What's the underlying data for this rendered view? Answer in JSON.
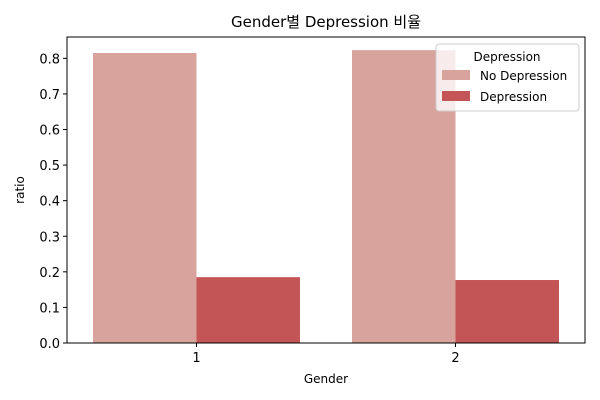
{
  "chart_data": {
    "type": "bar",
    "title": "Gender별 Depression 비율",
    "xlabel": "Gender",
    "ylabel": "ratio",
    "categories": [
      "1",
      "2"
    ],
    "series": [
      {
        "name": "No Depression",
        "values": [
          0.815,
          0.823
        ],
        "color": "#d8a29d"
      },
      {
        "name": "Depression",
        "values": [
          0.185,
          0.177
        ],
        "color": "#c35556"
      }
    ],
    "ylim": [
      0,
      0.86
    ],
    "yticks": [
      0.0,
      0.1,
      0.2,
      0.3,
      0.4,
      0.5,
      0.6,
      0.7,
      0.8
    ],
    "ytick_labels": [
      "0.0",
      "0.1",
      "0.2",
      "0.3",
      "0.4",
      "0.5",
      "0.6",
      "0.7",
      "0.8"
    ],
    "legend": {
      "title": "Depression",
      "placement": "top-right"
    },
    "grid": false
  }
}
